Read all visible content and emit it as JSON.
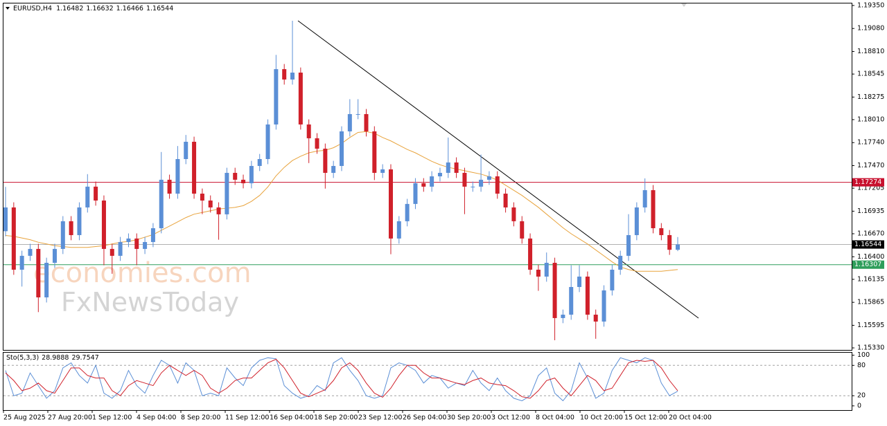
{
  "chart_data": {
    "type": "candlestick",
    "symbol": "EURUSD,H4",
    "up_color": "#5b8fd6",
    "down_color": "#d0202a",
    "open": [
      1.167,
      1.16979,
      1.16248,
      1.16411,
      1.16492,
      1.15923,
      1.16329,
      1.16492,
      1.16817,
      1.16654,
      1.16979,
      1.17223,
      1.1706,
      1.16492,
      1.16411,
      1.16573,
      1.16614,
      1.16492,
      1.16573,
      1.16735,
      1.17304,
      1.17141,
      1.17547,
      1.1775,
      1.17141,
      1.1706,
      1.16979,
      1.16898,
      1.17385,
      1.17304,
      1.17263,
      1.17466,
      1.17547,
      1.17953,
      1.18603,
      1.18481,
      1.18562,
      1.17953,
      1.17791,
      1.17669,
      1.17385,
      1.17466,
      1.17872,
      1.18075,
      1.18075,
      1.17872,
      1.17385,
      1.17426,
      1.16614,
      1.16817,
      1.1702,
      1.17263,
      1.17223,
      1.17344,
      1.17385,
      1.17507,
      1.17385,
      1.17223,
      1.17223,
      1.17304,
      1.17344,
      1.17141,
      1.16979,
      1.16817,
      1.16614,
      1.16248,
      1.16167,
      1.16329,
      1.1568,
      1.1572,
      1.16045,
      1.16167,
      1.1572,
      1.15639,
      1.16005,
      1.16248,
      1.16411,
      1.16654,
      1.16979,
      1.17182,
      1.16735,
      1.16654,
      1.16482
    ],
    "high": [
      1.1722,
      1.17039,
      1.16471,
      1.16552,
      1.16552,
      1.16389,
      1.16552,
      1.16877,
      1.16877,
      1.17039,
      1.1737,
      1.17283,
      1.1712,
      1.16552,
      1.16633,
      1.16674,
      1.16674,
      1.16633,
      1.16795,
      1.1763,
      1.17364,
      1.177,
      1.1783,
      1.1781,
      1.17201,
      1.1712,
      1.17039,
      1.17445,
      1.17445,
      1.17364,
      1.17526,
      1.17607,
      1.18013,
      1.1877,
      1.18663,
      1.19171,
      1.18622,
      1.18013,
      1.17851,
      1.17729,
      1.17526,
      1.17932,
      1.1825,
      1.1825,
      1.18135,
      1.17932,
      1.17486,
      1.17486,
      1.16877,
      1.1708,
      1.17323,
      1.17323,
      1.17404,
      1.17445,
      1.178,
      1.17567,
      1.17445,
      1.17283,
      1.176,
      1.17404,
      1.17404,
      1.17201,
      1.17039,
      1.16877,
      1.16674,
      1.16308,
      1.1645,
      1.16389,
      1.1578,
      1.163,
      1.163,
      1.16227,
      1.1578,
      1.16065,
      1.16308,
      1.16471,
      1.169,
      1.17039,
      1.1732,
      1.17242,
      1.16795,
      1.16714,
      1.16632
    ],
    "low": [
      1.1664,
      1.16188,
      1.1605,
      1.16351,
      1.1575,
      1.15863,
      1.16269,
      1.16432,
      1.16594,
      1.16594,
      1.16919,
      1.17,
      1.163,
      1.162,
      1.16351,
      1.16513,
      1.163,
      1.16432,
      1.16513,
      1.16675,
      1.17081,
      1.17081,
      1.17487,
      1.17081,
      1.169,
      1.16919,
      1.166,
      1.16838,
      1.17244,
      1.17203,
      1.17203,
      1.17406,
      1.17487,
      1.17893,
      1.18421,
      1.18421,
      1.17893,
      1.175,
      1.17609,
      1.172,
      1.17325,
      1.17406,
      1.17812,
      1.18015,
      1.17812,
      1.173,
      1.17325,
      1.1643,
      1.16554,
      1.16757,
      1.1696,
      1.17163,
      1.17163,
      1.17284,
      1.17325,
      1.17325,
      1.169,
      1.17163,
      1.17163,
      1.17244,
      1.17081,
      1.16919,
      1.16757,
      1.16554,
      1.16188,
      1.16,
      1.16107,
      1.1542,
      1.1562,
      1.1566,
      1.15985,
      1.1566,
      1.15437,
      1.15579,
      1.15945,
      1.16188,
      1.16351,
      1.16594,
      1.16919,
      1.16675,
      1.16594,
      1.16422,
      1.16466
    ],
    "close": [
      1.16979,
      1.16248,
      1.16411,
      1.16492,
      1.15923,
      1.16329,
      1.16492,
      1.16817,
      1.16654,
      1.16979,
      1.17223,
      1.1706,
      1.16492,
      1.16411,
      1.16573,
      1.16614,
      1.16492,
      1.16573,
      1.16735,
      1.17304,
      1.17141,
      1.17547,
      1.1775,
      1.17141,
      1.1706,
      1.16979,
      1.16898,
      1.17385,
      1.17304,
      1.17263,
      1.17466,
      1.17547,
      1.17953,
      1.18603,
      1.18481,
      1.18562,
      1.17953,
      1.17791,
      1.17669,
      1.17385,
      1.17466,
      1.17872,
      1.18075,
      1.18075,
      1.17872,
      1.17385,
      1.17426,
      1.16614,
      1.16817,
      1.1702,
      1.17263,
      1.17223,
      1.17344,
      1.17385,
      1.17507,
      1.17385,
      1.17223,
      1.17223,
      1.17304,
      1.17344,
      1.17141,
      1.16979,
      1.16817,
      1.16614,
      1.16248,
      1.16167,
      1.16329,
      1.1568,
      1.1572,
      1.16045,
      1.16167,
      1.1572,
      1.15639,
      1.16005,
      1.16248,
      1.16411,
      1.16654,
      1.16979,
      1.17182,
      1.16735,
      1.16654,
      1.16482,
      1.16544
    ],
    "ma": {
      "color": "#e8a33c",
      "values": [
        1.1665,
        1.1664,
        1.1662,
        1.166,
        1.1657,
        1.1655,
        1.1653,
        1.1652,
        1.1651,
        1.1651,
        1.1651,
        1.1652,
        1.1653,
        1.1655,
        1.1657,
        1.1658,
        1.166,
        1.1663,
        1.1666,
        1.1671,
        1.1676,
        1.1681,
        1.1686,
        1.169,
        1.1692,
        1.1694,
        1.1696,
        1.1697,
        1.1698,
        1.17,
        1.1705,
        1.1712,
        1.1722,
        1.1735,
        1.1745,
        1.1753,
        1.1758,
        1.1762,
        1.1764,
        1.1765,
        1.1768,
        1.1773,
        1.178,
        1.1786,
        1.1787,
        1.1785,
        1.178,
        1.1776,
        1.1771,
        1.1766,
        1.1762,
        1.1757,
        1.1752,
        1.1748,
        1.1745,
        1.1743,
        1.1741,
        1.1739,
        1.1737,
        1.1734,
        1.173,
        1.1724,
        1.1718,
        1.1712,
        1.1705,
        1.1698,
        1.169,
        1.1682,
        1.1674,
        1.1667,
        1.1661,
        1.1655,
        1.1648,
        1.1641,
        1.1634,
        1.1628,
        1.1625,
        1.1623,
        1.1623,
        1.1623,
        1.1623,
        1.1624,
        1.1625
      ]
    },
    "ylim": [
      1.15306,
      1.19382
    ],
    "yticks": [
      {
        "value": 1.1935,
        "label": "1.19350"
      },
      {
        "value": 1.1908,
        "label": "1.19080"
      },
      {
        "value": 1.1881,
        "label": "1.18810"
      },
      {
        "value": 1.18545,
        "label": "1.18545"
      },
      {
        "value": 1.18275,
        "label": "1.18275"
      },
      {
        "value": 1.1801,
        "label": "1.18010"
      },
      {
        "value": 1.1774,
        "label": "1.17740"
      },
      {
        "value": 1.1747,
        "label": "1.17470"
      },
      {
        "value": 1.17205,
        "label": "1.17205"
      },
      {
        "value": 1.16935,
        "label": "1.16935"
      },
      {
        "value": 1.1667,
        "label": "1.16670"
      },
      {
        "value": 1.164,
        "label": "1.16400"
      },
      {
        "value": 1.16135,
        "label": "1.16135"
      },
      {
        "value": 1.15865,
        "label": "1.15865"
      },
      {
        "value": 1.15595,
        "label": "1.15595"
      },
      {
        "value": 1.1533,
        "label": "1.15330"
      }
    ],
    "levels": [
      {
        "value": 1.17274,
        "color": "#c8102e",
        "label_background": "#c8102e"
      },
      {
        "value": 1.16544,
        "color": "#b0b0b0",
        "label_background": "#000000"
      },
      {
        "value": 1.16307,
        "color": "#2e9e5b",
        "label_background": "#2e9e5b"
      }
    ],
    "x_labels": [
      "25 Aug 2025",
      "27 Aug 20:00",
      "1 Sep 12:00",
      "4 Sep 04:00",
      "8 Sep 20:00",
      "11 Sep 12:00",
      "16 Sep 04:00",
      "18 Sep 20:00",
      "23 Sep 12:00",
      "26 Sep 04:00",
      "30 Sep 20:00",
      "3 Oct 12:00",
      "8 Oct 04:00",
      "10 Oct 20:00",
      "15 Oct 12:00",
      "20 Oct 04:00"
    ],
    "watermark": [
      "economies.com",
      "FxNewsToday"
    ],
    "stochastic": {
      "name": "Sto(5,3,3)",
      "ylim": [
        -7,
        105
      ],
      "yticks": [
        100,
        80,
        20,
        0
      ],
      "levels": [
        80,
        20
      ],
      "series": [
        {
          "color": "#5b8fd6",
          "values": [
            70,
            20,
            25,
            65,
            40,
            15,
            30,
            75,
            85,
            60,
            45,
            80,
            25,
            15,
            30,
            70,
            40,
            25,
            60,
            90,
            80,
            45,
            85,
            70,
            20,
            25,
            20,
            75,
            55,
            40,
            75,
            90,
            95,
            93,
            40,
            25,
            15,
            20,
            40,
            30,
            85,
            95,
            70,
            50,
            20,
            15,
            20,
            75,
            85,
            80,
            70,
            45,
            60,
            55,
            35,
            45,
            40,
            70,
            45,
            30,
            55,
            30,
            15,
            10,
            20,
            60,
            75,
            25,
            10,
            30,
            85,
            55,
            15,
            25,
            70,
            95,
            90,
            85,
            95,
            90,
            45,
            20,
            28.9888
          ]
        },
        {
          "color": "#d0202a",
          "values": [
            65,
            50,
            30,
            35,
            45,
            30,
            25,
            50,
            75,
            75,
            60,
            55,
            55,
            30,
            20,
            40,
            50,
            45,
            40,
            65,
            80,
            70,
            60,
            70,
            60,
            35,
            25,
            35,
            50,
            55,
            55,
            70,
            85,
            92,
            75,
            50,
            25,
            18,
            25,
            32,
            50,
            75,
            85,
            70,
            45,
            25,
            17,
            35,
            60,
            80,
            80,
            65,
            55,
            55,
            50,
            45,
            42,
            50,
            55,
            45,
            42,
            40,
            30,
            18,
            15,
            30,
            50,
            55,
            35,
            20,
            40,
            60,
            50,
            30,
            35,
            60,
            85,
            90,
            88,
            90,
            75,
            50,
            29.7547
          ]
        }
      ]
    }
  }
}
